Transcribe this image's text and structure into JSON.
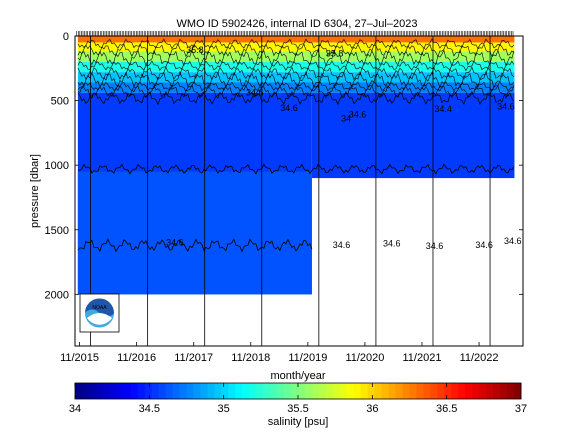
{
  "chart_data": {
    "type": "heatmap",
    "title": "WMO ID 5902426, internal ID 6304, 27–Jul–2023",
    "xlabel": "month/year",
    "ylabel": "pressure [dbar]",
    "x_ticks": [
      "11/2015",
      "11/2016",
      "11/2017",
      "11/2018",
      "11/2019",
      "11/2020",
      "11/2021",
      "11/2022"
    ],
    "y_ticks": [
      0,
      500,
      1000,
      1500,
      2000
    ],
    "ylim": [
      2400,
      0
    ],
    "xlim": [
      2015.75,
      2023.6
    ],
    "x_tick_values": [
      2015.83,
      2016.83,
      2017.83,
      2018.83,
      2019.83,
      2020.83,
      2021.83,
      2022.83
    ],
    "profile_depth": [
      {
        "x": [
          2015.8,
          2019.9
        ],
        "max_pressure": 2000
      },
      {
        "x": [
          2019.9,
          2023.45
        ],
        "max_pressure": 1100
      }
    ],
    "colorbar": {
      "label": "salinity [psu]",
      "ticks": [
        34,
        34.5,
        35,
        35.5,
        36,
        36.5,
        37
      ],
      "range": [
        34,
        37
      ]
    },
    "layers": [
      {
        "from": 0,
        "to": 50,
        "salinity": 36.3
      },
      {
        "from": 50,
        "to": 120,
        "salinity": 35.9
      },
      {
        "from": 120,
        "to": 200,
        "salinity": 35.6
      },
      {
        "from": 200,
        "to": 280,
        "salinity": 35.2
      },
      {
        "from": 280,
        "to": 360,
        "salinity": 34.95
      },
      {
        "from": 360,
        "to": 440,
        "salinity": 34.75
      },
      {
        "from": 440,
        "to": 2000,
        "salinity": 34.55
      }
    ],
    "contour_labels": [
      {
        "text": "35.8",
        "x": 2017.85,
        "p": 130
      },
      {
        "text": "35.8",
        "x": 2020.3,
        "p": 160
      },
      {
        "text": "34.6",
        "x": 2018.9,
        "p": 460
      },
      {
        "text": "34.6",
        "x": 2019.5,
        "p": 580
      },
      {
        "text": "34",
        "x": 2020.5,
        "p": 660
      },
      {
        "text": "34.6",
        "x": 2020.7,
        "p": 630
      },
      {
        "text": "34.4",
        "x": 2022.2,
        "p": 590
      },
      {
        "text": "34.6",
        "x": 2023.3,
        "p": 570
      },
      {
        "text": "34.6",
        "x": 2017.5,
        "p": 1620
      },
      {
        "text": "34.6",
        "x": 2020.42,
        "p": 1640
      },
      {
        "text": "34.6",
        "x": 2021.3,
        "p": 1630
      },
      {
        "text": "34.6",
        "x": 2022.05,
        "p": 1650
      },
      {
        "text": "34.6",
        "x": 2022.92,
        "p": 1640
      },
      {
        "text": "34.6",
        "x": 2023.42,
        "p": 1610
      }
    ]
  }
}
